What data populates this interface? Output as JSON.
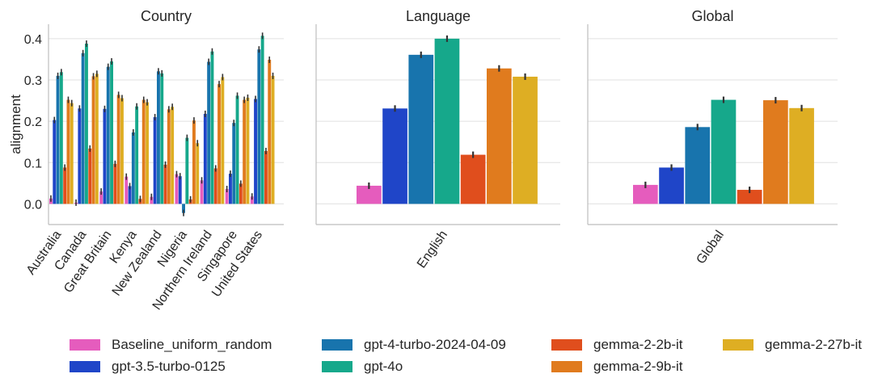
{
  "chart_data": {
    "type": "bar",
    "ylabel": "alignment",
    "ylim": [
      -0.05,
      0.435
    ],
    "yticks": [
      0.0,
      0.1,
      0.2,
      0.3,
      0.4
    ],
    "grid": true,
    "legend_position": "bottom",
    "series": [
      {
        "name": "Baseline_uniform_random",
        "color": "#e55cbd"
      },
      {
        "name": "gpt-3.5-turbo-0125",
        "color": "#1f45c8"
      },
      {
        "name": "gpt-4-turbo-2024-04-09",
        "color": "#1874ad"
      },
      {
        "name": "gpt-4o",
        "color": "#16a88b"
      },
      {
        "name": "gemma-2-2b-it",
        "color": "#e04e1d"
      },
      {
        "name": "gemma-2-9b-it",
        "color": "#e07b1e"
      },
      {
        "name": "gemma-2-27b-it",
        "color": "#deae23"
      }
    ],
    "panels": [
      {
        "title": "Country",
        "categories": [
          "Australia",
          "Canada",
          "Great Britain",
          "Kenya",
          "New Zealand",
          "Nigeria",
          "Northern Ireland",
          "Singapore",
          "United States"
        ],
        "values": [
          [
            0.013,
            0.003,
            0.03,
            0.066,
            0.017,
            0.072,
            0.057,
            0.036,
            0.018
          ],
          [
            0.203,
            0.231,
            0.23,
            0.043,
            0.21,
            0.067,
            0.218,
            0.073,
            0.254
          ],
          [
            0.31,
            0.365,
            0.332,
            0.173,
            0.321,
            -0.022,
            0.344,
            0.196,
            0.374
          ],
          [
            0.319,
            0.388,
            0.345,
            0.236,
            0.316,
            0.16,
            0.369,
            0.262,
            0.407
          ],
          [
            0.088,
            0.134,
            0.097,
            0.012,
            0.095,
            0.011,
            0.086,
            0.049,
            0.128
          ],
          [
            0.252,
            0.309,
            0.264,
            0.252,
            0.229,
            0.202,
            0.29,
            0.252,
            0.349
          ],
          [
            0.244,
            0.315,
            0.256,
            0.246,
            0.235,
            0.147,
            0.307,
            0.257,
            0.31
          ]
        ]
      },
      {
        "title": "Language",
        "categories": [
          "English"
        ],
        "values": [
          [
            0.044
          ],
          [
            0.231
          ],
          [
            0.361
          ],
          [
            0.4
          ],
          [
            0.119
          ],
          [
            0.328
          ],
          [
            0.308
          ]
        ]
      },
      {
        "title": "Global",
        "categories": [
          "Global"
        ],
        "values": [
          [
            0.046
          ],
          [
            0.088
          ],
          [
            0.186
          ],
          [
            0.252
          ],
          [
            0.034
          ],
          [
            0.251
          ],
          [
            0.232
          ]
        ]
      }
    ]
  }
}
